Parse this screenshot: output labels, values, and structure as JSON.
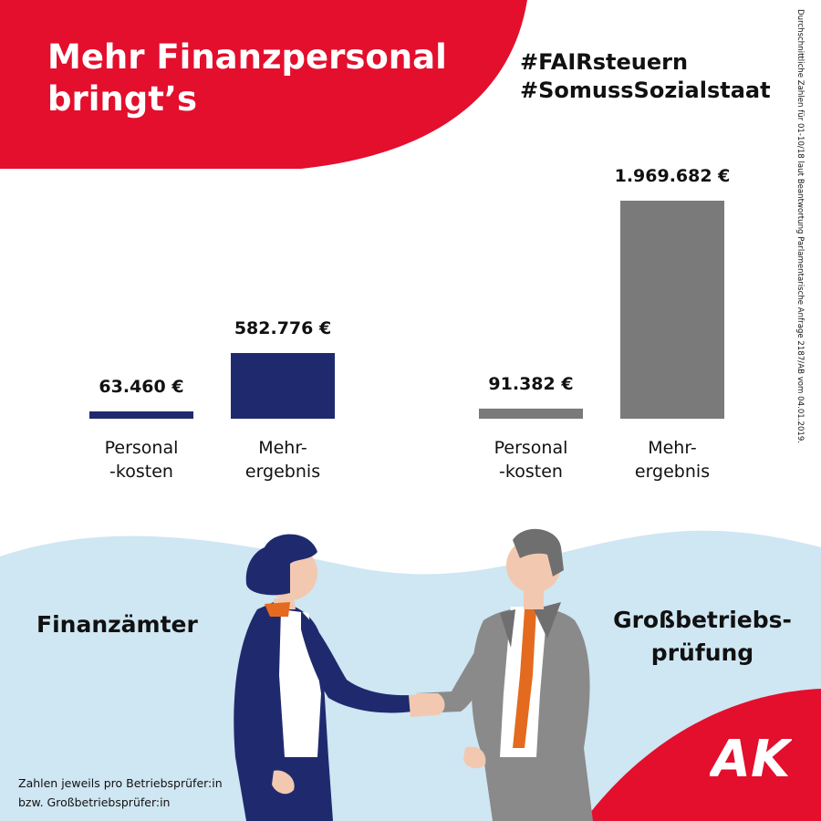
{
  "title_lines": [
    "Mehr Finanzpersonal",
    "bringt’s"
  ],
  "hashtags": [
    "#FAIRsteuern",
    "#SomussSozialstaat"
  ],
  "source_note": "Durchschnittliche Zahlen für 01-10/18 laut Beantwortung Parlamentarische Anfrage 2187/AB vom 04.01.2019.",
  "footnote_lines": [
    "Zahlen jeweils pro Betriebsprüfer:in",
    "bzw. Großbetriebsprüfer:in"
  ],
  "logo_text": "AK",
  "colors": {
    "red": "#e30f2d",
    "navy": "#1f2a6e",
    "gray": "#7a7a7a",
    "light_blue": "#cfe6f3"
  },
  "chart_data": [
    {
      "type": "bar",
      "group_label": "Finanzämter",
      "categories": [
        [
          "Personal",
          "-kosten"
        ],
        [
          "Mehr-",
          "ergebnis"
        ]
      ],
      "values": [
        63460,
        582776
      ],
      "value_labels": [
        "63.460 €",
        "582.776 €"
      ],
      "color": "#1f2a6e"
    },
    {
      "type": "bar",
      "group_label_lines": [
        "Großbetriebs-",
        "prüfung"
      ],
      "categories": [
        [
          "Personal",
          "-kosten"
        ],
        [
          "Mehr-",
          "ergebnis"
        ]
      ],
      "values": [
        91382,
        1969682
      ],
      "value_labels": [
        "91.382 €",
        "1.969.682 €"
      ],
      "color": "#7a7a7a"
    }
  ]
}
